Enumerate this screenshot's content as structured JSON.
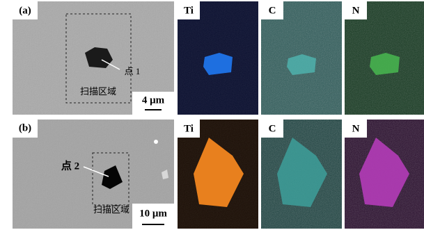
{
  "panels": [
    {
      "label": "(a)",
      "point": "点 1",
      "scan_area": "扫描区域",
      "scale_bar": "4 μm",
      "maps": [
        "Ti",
        "C",
        "N"
      ]
    },
    {
      "label": "(b)",
      "point": "点 2",
      "scan_area": "扫描区域",
      "scale_bar": "10 μm",
      "maps": [
        "Ti",
        "C",
        "N"
      ]
    }
  ]
}
